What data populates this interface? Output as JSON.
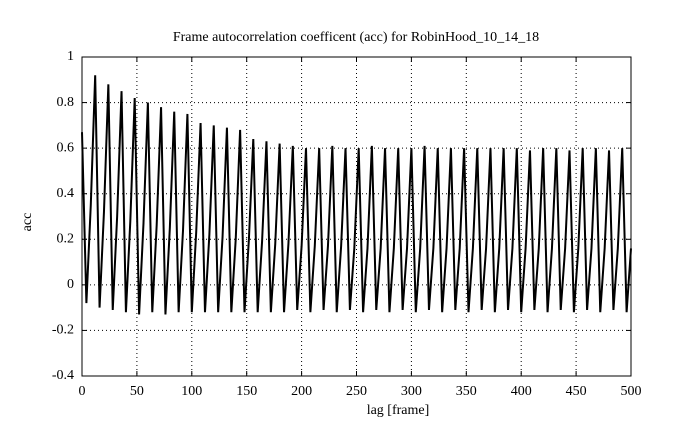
{
  "chart_data": {
    "type": "line",
    "title": "Frame autocorrelation coefficent (acc) for RobinHood_10_14_18",
    "xlabel": "lag [frame]",
    "ylabel": "acc",
    "x": [
      0,
      4,
      8,
      12,
      16,
      20,
      24,
      28,
      32,
      36,
      40,
      44,
      48,
      52,
      56,
      60,
      64,
      68,
      72,
      76,
      80,
      84,
      88,
      92,
      96,
      100,
      104,
      108,
      112,
      116,
      120,
      124,
      128,
      132,
      136,
      140,
      144,
      148,
      152,
      156,
      160,
      164,
      168,
      172,
      176,
      180,
      184,
      188,
      192,
      196,
      200,
      204,
      208,
      212,
      216,
      220,
      224,
      228,
      232,
      236,
      240,
      244,
      248,
      252,
      256,
      260,
      264,
      268,
      272,
      276,
      280,
      284,
      288,
      292,
      296,
      300,
      304,
      308,
      312,
      316,
      320,
      324,
      328,
      332,
      336,
      340,
      344,
      348,
      352,
      356,
      360,
      364,
      368,
      372,
      376,
      380,
      384,
      388,
      392,
      396,
      400,
      404,
      408,
      412,
      416,
      420,
      424,
      428,
      432,
      436,
      440,
      444,
      448,
      452,
      456,
      460,
      464,
      468,
      472,
      476,
      480,
      484,
      488,
      492,
      496,
      500
    ],
    "values": [
      0.67,
      -0.08,
      0.35,
      0.92,
      -0.1,
      0.32,
      0.88,
      -0.11,
      0.3,
      0.85,
      -0.12,
      0.28,
      0.82,
      -0.13,
      0.27,
      0.8,
      -0.12,
      0.26,
      0.78,
      -0.13,
      0.25,
      0.76,
      -0.12,
      0.24,
      0.75,
      -0.12,
      0.23,
      0.71,
      -0.12,
      0.22,
      0.7,
      -0.12,
      0.21,
      0.69,
      -0.12,
      0.2,
      0.68,
      -0.12,
      0.2,
      0.64,
      -0.12,
      0.19,
      0.63,
      -0.12,
      0.18,
      0.62,
      -0.12,
      0.18,
      0.61,
      -0.11,
      0.17,
      0.6,
      -0.12,
      0.17,
      0.6,
      -0.11,
      0.17,
      0.61,
      -0.12,
      0.17,
      0.6,
      -0.11,
      0.16,
      0.6,
      -0.12,
      0.16,
      0.61,
      -0.11,
      0.16,
      0.6,
      -0.12,
      0.16,
      0.6,
      -0.11,
      0.16,
      0.6,
      -0.12,
      0.16,
      0.61,
      -0.11,
      0.16,
      0.6,
      -0.12,
      0.16,
      0.6,
      -0.11,
      0.16,
      0.6,
      -0.12,
      0.16,
      0.6,
      -0.11,
      0.16,
      0.6,
      -0.12,
      0.16,
      0.6,
      -0.11,
      0.16,
      0.6,
      -0.12,
      0.16,
      0.59,
      -0.11,
      0.16,
      0.6,
      -0.12,
      0.16,
      0.6,
      -0.11,
      0.16,
      0.59,
      -0.12,
      0.16,
      0.6,
      -0.11,
      0.16,
      0.6,
      -0.12,
      0.16,
      0.59,
      -0.11,
      0.16,
      0.6,
      -0.12,
      0.16
    ],
    "color": "#000000",
    "xlim": [
      0,
      500
    ],
    "xticks": [
      0,
      50,
      100,
      150,
      200,
      250,
      300,
      350,
      400,
      450,
      500
    ],
    "ylim": [
      -0.4,
      1
    ],
    "yticks": [
      -0.4,
      -0.2,
      0,
      0.2,
      0.4,
      0.6,
      0.8,
      1
    ],
    "grid": true
  }
}
